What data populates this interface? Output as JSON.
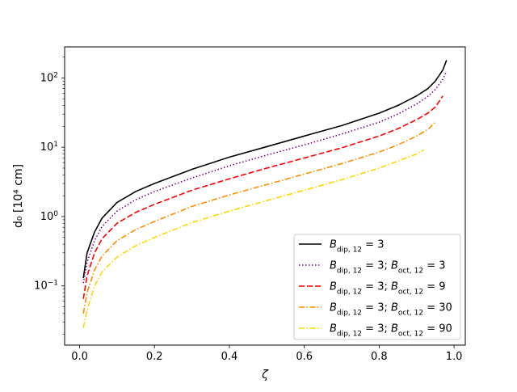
{
  "chart_data": {
    "type": "line",
    "title": "",
    "xlabel": "ζ",
    "ylabel": "d₀ [10⁴ cm]",
    "xscale": "linear",
    "yscale": "log",
    "xlim": [
      -0.04,
      1.03
    ],
    "ylim": [
      0.014,
      280
    ],
    "x_ticks": [
      {
        "value": 0.0,
        "label": "0.0"
      },
      {
        "value": 0.2,
        "label": "0.2"
      },
      {
        "value": 0.4,
        "label": "0.4"
      },
      {
        "value": 0.6,
        "label": "0.6"
      },
      {
        "value": 0.8,
        "label": "0.8"
      },
      {
        "value": 1.0,
        "label": "1.0"
      }
    ],
    "y_ticks": [
      {
        "value": 0.1,
        "mantissa": "10",
        "exponent": "−1"
      },
      {
        "value": 1,
        "mantissa": "10",
        "exponent": "0"
      },
      {
        "value": 10,
        "mantissa": "10",
        "exponent": "1"
      },
      {
        "value": 100,
        "mantissa": "10",
        "exponent": "2"
      }
    ],
    "grid": false,
    "legend_position": "bottom-right",
    "series": [
      {
        "name": "B_dip,12 = 3",
        "legend_parts": [
          {
            "base": "B",
            "sub": "dip, 12",
            "tail": " = 3"
          }
        ],
        "color": "#000000",
        "dash": "solid",
        "x": [
          0.01,
          0.02,
          0.04,
          0.06,
          0.1,
          0.15,
          0.2,
          0.3,
          0.4,
          0.5,
          0.6,
          0.7,
          0.8,
          0.85,
          0.9,
          0.93,
          0.95,
          0.97,
          0.98
        ],
        "y": [
          0.13,
          0.3,
          0.6,
          0.95,
          1.6,
          2.3,
          3.0,
          4.8,
          7.2,
          10.2,
          14.5,
          20.5,
          31,
          40,
          55,
          70,
          90,
          130,
          180
        ]
      },
      {
        "name": "B_dip,12 = 3; B_oct,12 = 3",
        "legend_parts": [
          {
            "base": "B",
            "sub": "dip, 12",
            "tail": " = 3; "
          },
          {
            "base": "B",
            "sub": "oct, 12",
            "tail": " = 3"
          }
        ],
        "color": "#800080",
        "dash": "dotted",
        "x": [
          0.01,
          0.02,
          0.04,
          0.06,
          0.1,
          0.15,
          0.2,
          0.3,
          0.4,
          0.5,
          0.6,
          0.7,
          0.8,
          0.85,
          0.9,
          0.93,
          0.95,
          0.97,
          0.98
        ],
        "y": [
          0.11,
          0.22,
          0.45,
          0.72,
          1.2,
          1.75,
          2.3,
          3.6,
          5.4,
          7.7,
          10.8,
          15.5,
          23,
          30,
          42,
          54,
          68,
          95,
          125
        ]
      },
      {
        "name": "B_dip,12 = 3; B_oct,12 = 9",
        "legend_parts": [
          {
            "base": "B",
            "sub": "dip, 12",
            "tail": " = 3; "
          },
          {
            "base": "B",
            "sub": "oct, 12",
            "tail": " = 9"
          }
        ],
        "color": "#ff0000",
        "dash": "dashed",
        "x": [
          0.01,
          0.02,
          0.04,
          0.06,
          0.1,
          0.15,
          0.2,
          0.3,
          0.4,
          0.5,
          0.6,
          0.7,
          0.8,
          0.85,
          0.9,
          0.93,
          0.95,
          0.97
        ],
        "y": [
          0.065,
          0.14,
          0.3,
          0.48,
          0.8,
          1.15,
          1.5,
          2.4,
          3.5,
          5.0,
          7.0,
          9.8,
          14.5,
          18.5,
          25,
          31,
          38,
          55
        ]
      },
      {
        "name": "B_dip,12 = 3; B_oct,12 = 30",
        "legend_parts": [
          {
            "base": "B",
            "sub": "dip, 12",
            "tail": " = 3; "
          },
          {
            "base": "B",
            "sub": "oct, 12",
            "tail": " = 30"
          }
        ],
        "color": "#ff8c00",
        "dash": "dashdot",
        "x": [
          0.01,
          0.02,
          0.04,
          0.06,
          0.1,
          0.15,
          0.2,
          0.3,
          0.4,
          0.5,
          0.6,
          0.7,
          0.8,
          0.85,
          0.9,
          0.93,
          0.95
        ],
        "y": [
          0.04,
          0.08,
          0.17,
          0.27,
          0.45,
          0.65,
          0.85,
          1.4,
          2.05,
          2.9,
          4.1,
          5.8,
          8.5,
          10.8,
          14.5,
          18,
          23
        ]
      },
      {
        "name": "B_dip,12 = 3; B_oct,12 = 90",
        "legend_parts": [
          {
            "base": "B",
            "sub": "dip, 12",
            "tail": " = 3; "
          },
          {
            "base": "B",
            "sub": "oct, 12",
            "tail": " = 90"
          }
        ],
        "color": "#ffd700",
        "dash": "dashdot",
        "x": [
          0.01,
          0.02,
          0.04,
          0.06,
          0.1,
          0.15,
          0.2,
          0.3,
          0.4,
          0.5,
          0.6,
          0.7,
          0.8,
          0.85,
          0.9,
          0.92
        ],
        "y": [
          0.025,
          0.045,
          0.1,
          0.16,
          0.26,
          0.38,
          0.5,
          0.82,
          1.2,
          1.7,
          2.4,
          3.4,
          5.0,
          6.3,
          8.0,
          9.2
        ]
      }
    ]
  }
}
